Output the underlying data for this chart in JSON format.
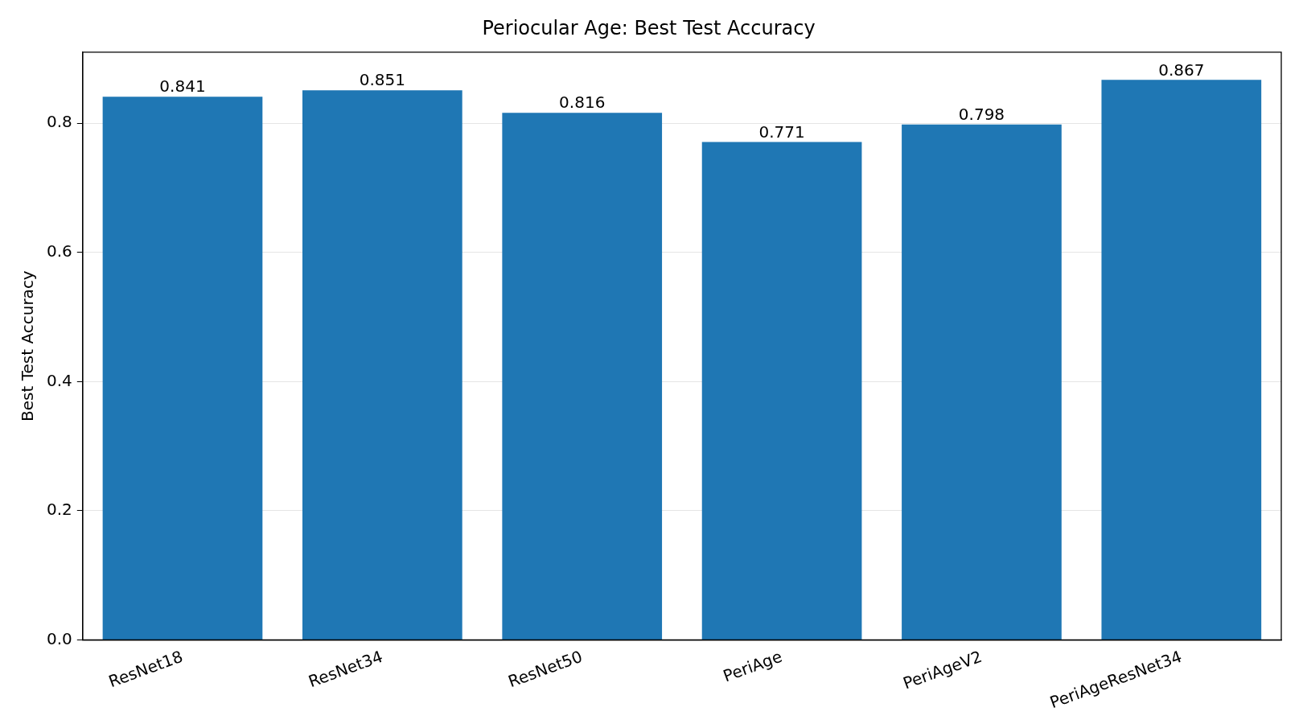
{
  "chart_data": {
    "type": "bar",
    "title": "Periocular Age: Best Test Accuracy",
    "ylabel": "Best Test Accuracy",
    "categories": [
      "ResNet18",
      "ResNet34",
      "ResNet50",
      "PeriAge",
      "PeriAgeV2",
      "PeriAgeResNet34"
    ],
    "values": [
      0.841,
      0.851,
      0.816,
      0.771,
      0.798,
      0.867
    ],
    "color": "#1f77b4",
    "ylim": [
      0,
      0.91
    ],
    "yticks": [
      {
        "value": 0,
        "label": "0.0"
      },
      0.2,
      0.4,
      0.6,
      0.8
    ],
    "grid": "y",
    "data_labels": true,
    "legend": false
  }
}
